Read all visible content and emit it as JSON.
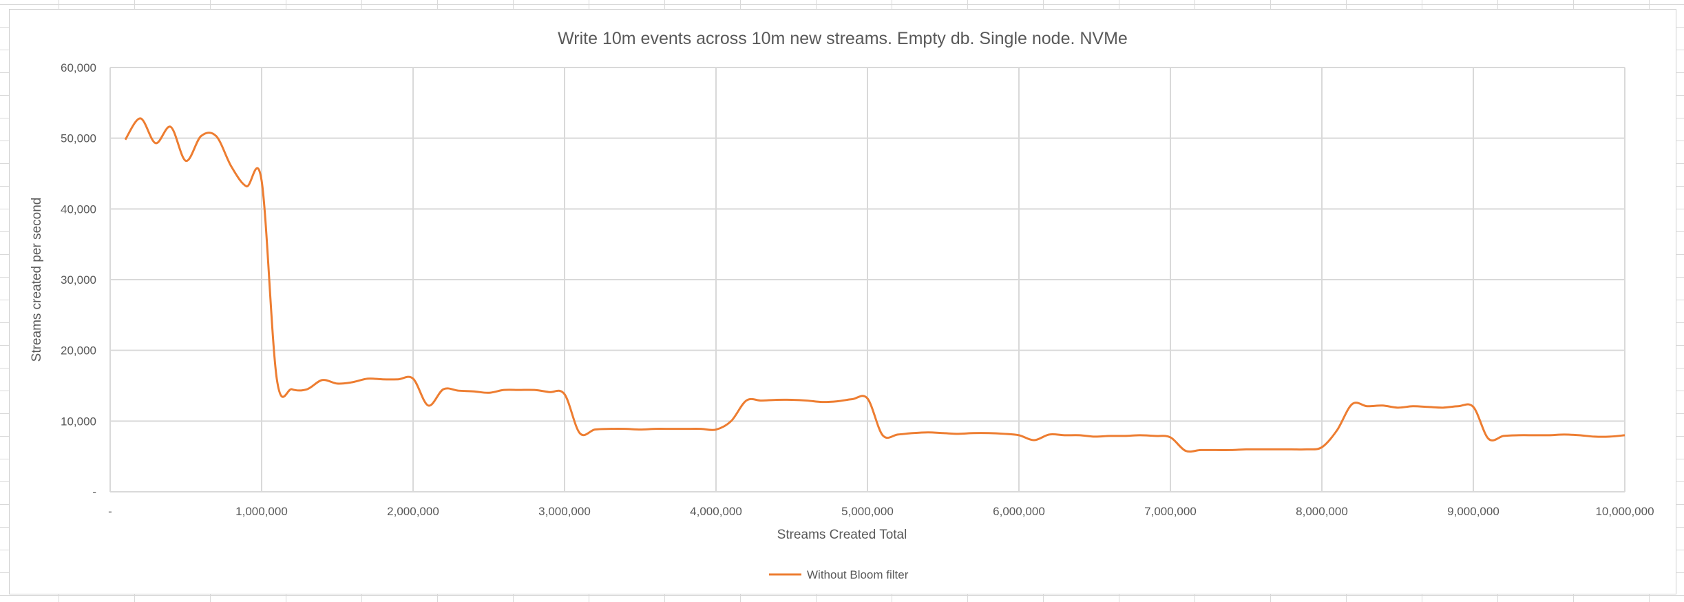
{
  "chart_data": {
    "type": "line",
    "title": "Write 10m events across 10m new streams. Empty db. Single node. NVMe",
    "xlabel": "Streams Created Total",
    "ylabel": "Streams created per second",
    "xlim": [
      0,
      10000000
    ],
    "ylim": [
      0,
      60000
    ],
    "x_ticks": [
      "-",
      "1,000,000",
      "2,000,000",
      "3,000,000",
      "4,000,000",
      "5,000,000",
      "6,000,000",
      "7,000,000",
      "8,000,000",
      "9,000,000",
      "10,000,000"
    ],
    "y_ticks": [
      "-",
      "10,000",
      "20,000",
      "30,000",
      "40,000",
      "50,000",
      "60,000"
    ],
    "grid": true,
    "smoothed": true,
    "legend_position": "bottom",
    "colors": {
      "series": "#ED7D31",
      "grid": "#D9D9D9",
      "text": "#595959"
    },
    "series": [
      {
        "name": "Without Bloom filter",
        "x": [
          100000,
          200000,
          300000,
          400000,
          500000,
          600000,
          700000,
          800000,
          900000,
          1000000,
          1100000,
          1200000,
          1300000,
          1400000,
          1500000,
          1600000,
          1700000,
          1800000,
          1900000,
          2000000,
          2100000,
          2200000,
          2300000,
          2400000,
          2500000,
          2600000,
          2700000,
          2800000,
          2900000,
          3000000,
          3100000,
          3200000,
          3300000,
          3400000,
          3500000,
          3600000,
          3700000,
          3800000,
          3900000,
          4000000,
          4100000,
          4200000,
          4300000,
          4400000,
          4500000,
          4600000,
          4700000,
          4800000,
          4900000,
          5000000,
          5100000,
          5200000,
          5300000,
          5400000,
          5500000,
          5600000,
          5700000,
          5800000,
          5900000,
          6000000,
          6100000,
          6200000,
          6300000,
          6400000,
          6500000,
          6600000,
          6700000,
          6800000,
          6900000,
          7000000,
          7100000,
          7200000,
          7300000,
          7400000,
          7500000,
          7600000,
          7700000,
          7800000,
          7900000,
          8000000,
          8100000,
          8200000,
          8300000,
          8400000,
          8500000,
          8600000,
          8700000,
          8800000,
          8900000,
          9000000,
          9100000,
          9200000,
          9300000,
          9400000,
          9500000,
          9600000,
          9700000,
          9800000,
          9900000,
          10000000
        ],
        "values": [
          49800,
          52800,
          49300,
          51600,
          46800,
          50300,
          50300,
          46000,
          43200,
          44000,
          16000,
          14500,
          14500,
          15800,
          15300,
          15500,
          16000,
          15900,
          15900,
          16000,
          12200,
          14500,
          14300,
          14200,
          14000,
          14400,
          14400,
          14400,
          14100,
          13800,
          8300,
          8800,
          8900,
          8900,
          8800,
          8900,
          8900,
          8900,
          8900,
          8800,
          10000,
          12900,
          12900,
          13000,
          13000,
          12900,
          12700,
          12800,
          13100,
          13200,
          8000,
          8100,
          8300,
          8400,
          8300,
          8200,
          8300,
          8300,
          8200,
          8000,
          7300,
          8100,
          8000,
          8000,
          7800,
          7900,
          7900,
          8000,
          7900,
          7700,
          5800,
          5900,
          5900,
          5900,
          6000,
          6000,
          6000,
          6000,
          6000,
          6300,
          8700,
          12400,
          12100,
          12200,
          11900,
          12100,
          12000,
          11900,
          12100,
          12000,
          7500,
          7900,
          8000,
          8000,
          8000,
          8100,
          8000,
          7800,
          7800,
          8000
        ]
      }
    ]
  }
}
